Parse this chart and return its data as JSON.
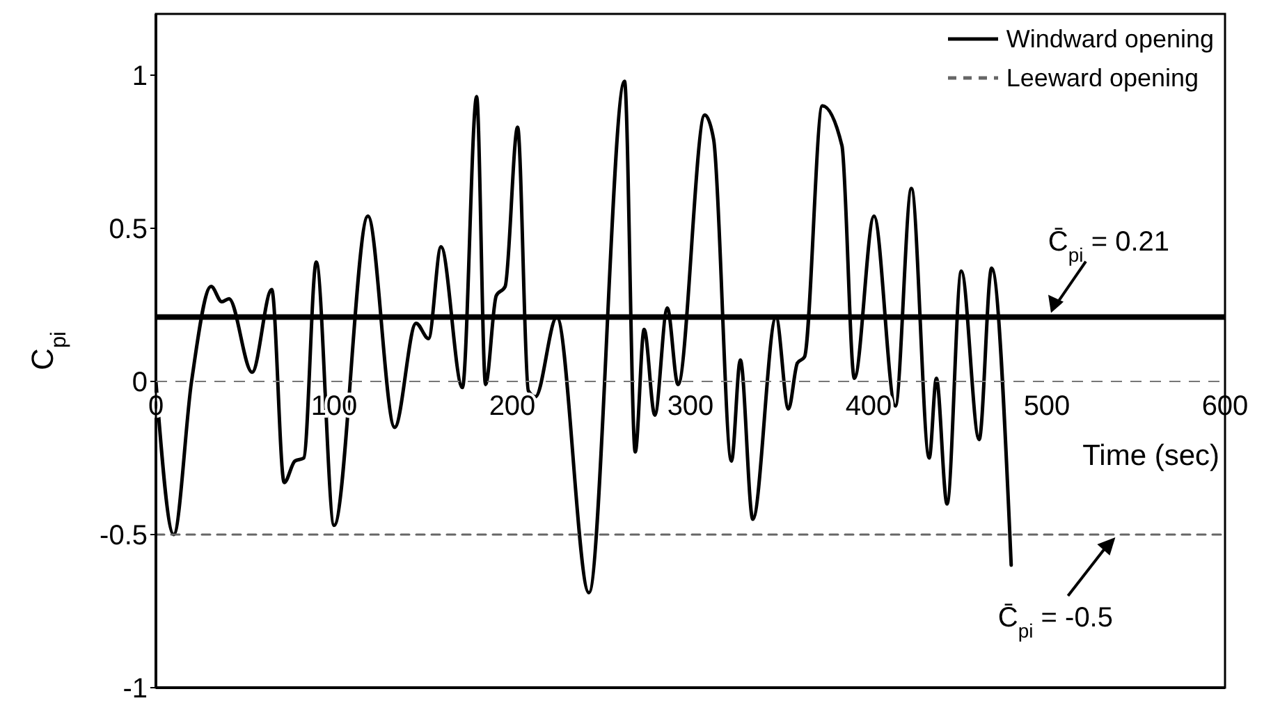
{
  "chart_data": {
    "type": "line",
    "xlabel": "Time (sec)",
    "ylabel": "C$_{pi}$",
    "xlim": [
      0,
      600
    ],
    "xticks": [
      0,
      100,
      200,
      300,
      400,
      500,
      600
    ],
    "ylim": [
      -1,
      1.2
    ],
    "yticks": [
      -1,
      -0.5,
      0,
      0.5,
      1
    ],
    "legend": "top right",
    "marker": "none",
    "series": [
      {
        "name": "Windward opening",
        "color": "#000000",
        "line_style": "solid",
        "x": [
          0,
          10,
          20,
          31,
          37,
          41,
          54,
          65,
          72,
          78,
          83,
          90,
          100,
          119,
          134,
          146,
          153,
          160,
          172,
          180,
          185,
          191,
          196,
          203,
          209,
          213,
          225,
          243,
          263,
          269,
          274,
          280,
          287,
          293,
          308,
          313,
          323,
          328,
          335,
          348,
          355,
          360,
          364,
          374,
          385,
          392,
          403,
          415,
          424,
          434,
          438,
          444,
          452,
          462,
          469,
          480
        ],
        "values": [
          0,
          -0.5,
          0,
          0.31,
          0.26,
          0.27,
          0.03,
          0.3,
          -0.33,
          -0.26,
          -0.25,
          0.39,
          -0.47,
          0.54,
          -0.15,
          0.19,
          0.14,
          0.44,
          -0.02,
          0.93,
          -0.01,
          0.28,
          0.31,
          0.83,
          -0.03,
          -0.05,
          0.21,
          -0.69,
          0.98,
          -0.23,
          0.17,
          -0.11,
          0.24,
          -0.01,
          0.87,
          0.79,
          -0.26,
          0.07,
          -0.45,
          0.21,
          -0.09,
          0.06,
          0.08,
          0.9,
          0.77,
          0.01,
          0.54,
          -0.08,
          0.63,
          -0.25,
          0.01,
          -0.4,
          0.36,
          -0.19,
          0.37,
          -0.6
        ]
      },
      {
        "name": "Leeward opening",
        "color": "#666666",
        "line_style": "dashed",
        "x": [
          0,
          600
        ],
        "values": [
          -0.5,
          -0.5
        ]
      }
    ],
    "ref_lines": [
      {
        "axis": "y",
        "value": 0.21,
        "label": "C̄$_{pi}$ = 0.21",
        "color": "#000000",
        "line_style": "solid"
      }
    ],
    "annotations": [
      {
        "text": "C̄$_{pi}$ = -0.5",
        "x": 540,
        "y": -0.5
      }
    ]
  }
}
